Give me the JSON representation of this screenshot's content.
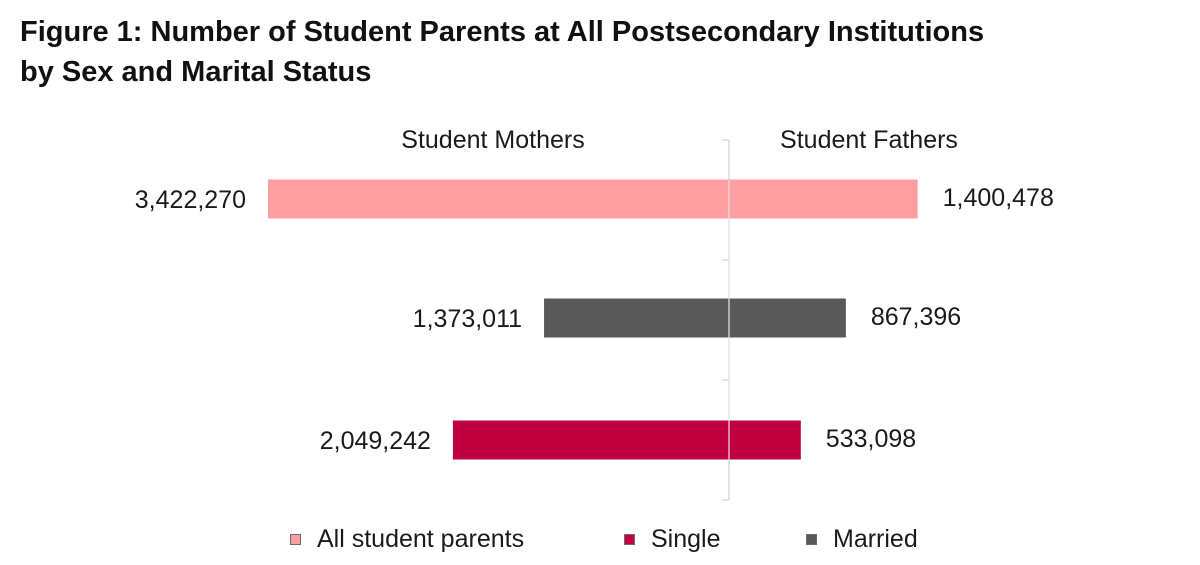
{
  "title_line1": "Figure 1: Number of Student Parents at All Postsecondary Institutions",
  "title_line2": "by Sex and Marital Status",
  "chart_data": {
    "type": "bar",
    "orientation": "horizontal-diverging",
    "left_label": "Student Mothers",
    "right_label": "Student Fathers",
    "categories": [
      "All student parents",
      "Married",
      "Single"
    ],
    "series": [
      {
        "name": "Student Mothers",
        "values": [
          3422270,
          1373011,
          2049242
        ]
      },
      {
        "name": "Student Fathers",
        "values": [
          1400478,
          867396,
          533098
        ]
      }
    ],
    "value_labels": {
      "mothers": [
        "3,422,270",
        "1,373,011",
        "2,049,242"
      ],
      "fathers": [
        "1,400,478",
        "867,396",
        "533,098"
      ]
    },
    "colors": {
      "All student parents": "#ff9fa2",
      "Married": "#595959",
      "Single": "#c00040"
    },
    "grid": false,
    "legend_position": "bottom",
    "legend": [
      {
        "label": "All student parents",
        "color": "#ff9fa2"
      },
      {
        "label": "Single",
        "color": "#c00040"
      },
      {
        "label": "Married",
        "color": "#595959"
      }
    ]
  }
}
